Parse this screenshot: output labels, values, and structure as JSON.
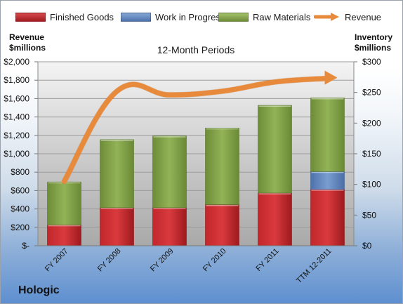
{
  "chart_data": {
    "type": "bar",
    "stacked": true,
    "subtitle": "12-Month Periods",
    "categories": [
      "FY 2007",
      "FY 2008",
      "FY 2009",
      "FY 2010",
      "FY 2011",
      "TTM 12-2011"
    ],
    "series": [
      {
        "name": "Finished Goods",
        "kind": "bar",
        "axis": "right",
        "color": "#c0282c",
        "values": [
          34,
          62,
          62,
          67,
          86,
          92
        ]
      },
      {
        "name": "Work in Progress",
        "kind": "bar",
        "axis": "right",
        "color": "#6a8fc4",
        "values": [
          0,
          0,
          0,
          0,
          0,
          29
        ]
      },
      {
        "name": "Raw Materials",
        "kind": "bar",
        "axis": "right",
        "color": "#8bab51",
        "values": [
          70,
          111,
          117,
          125,
          143,
          120
        ]
      },
      {
        "name": "Revenue",
        "kind": "line",
        "axis": "left",
        "color": "#e88a3c",
        "values": [
          700,
          1680,
          1640,
          1680,
          1780,
          1820
        ]
      }
    ],
    "left_axis": {
      "label": "Revenue\n$millions",
      "ylim": [
        0,
        2000
      ],
      "ticks": [
        "$-",
        "$200",
        "$400",
        "$600",
        "$800",
        "$1,000",
        "$1,200",
        "$1,400",
        "$1,600",
        "$1,800",
        "$2,000"
      ]
    },
    "right_axis": {
      "label": "Inventory\n$millions",
      "ylim": [
        0,
        300
      ],
      "ticks": [
        "$0",
        "$50",
        "$100",
        "$150",
        "$200",
        "$250",
        "$300"
      ]
    },
    "grid": true,
    "legend_position": "top"
  },
  "company": "Hologic"
}
